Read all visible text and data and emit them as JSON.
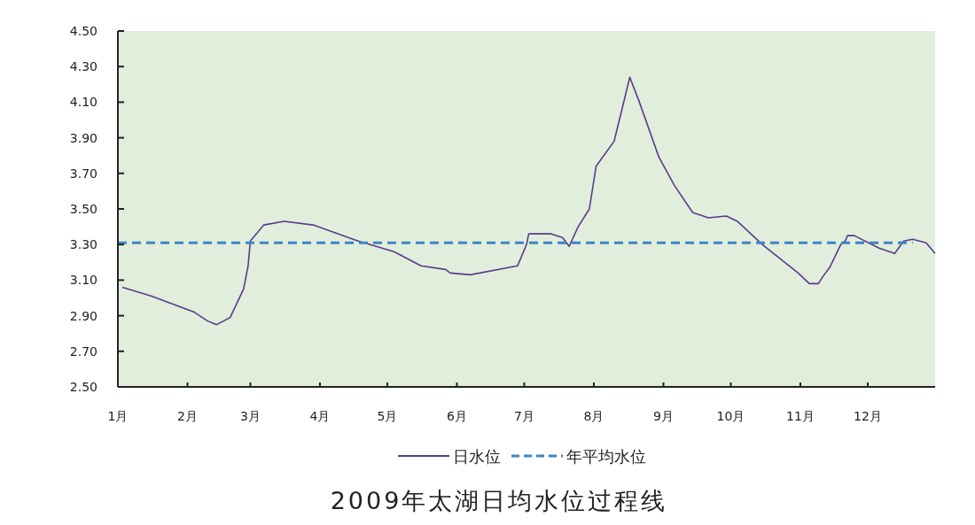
{
  "chart_data": {
    "type": "line",
    "title": "2009年太湖日均水位过程线",
    "xlim": [
      "--01-01",
      "--12-31"
    ],
    "xticks": [
      {
        "value": "--01-01",
        "label": "1月"
      },
      {
        "value": "--02-01",
        "label": "2月"
      },
      {
        "value": "--03-01",
        "label": "3月"
      },
      {
        "value": "--04-01",
        "label": "4月"
      },
      {
        "value": "--05-01",
        "label": "5月"
      },
      {
        "value": "--06-01",
        "label": "6月"
      },
      {
        "value": "--07-01",
        "label": "7月"
      },
      {
        "value": "--08-01",
        "label": "8月"
      },
      {
        "value": "--09-01",
        "label": "9月"
      },
      {
        "value": "--10-01",
        "label": "10月"
      },
      {
        "value": "--11-01",
        "label": "11月"
      },
      {
        "value": "--12-01",
        "label": "12月"
      }
    ],
    "ylim": [
      2.5,
      4.5
    ],
    "yticks": [
      {
        "value": 2.5,
        "label": "2.50"
      },
      {
        "value": 2.7,
        "label": "2.70"
      },
      {
        "value": 2.9,
        "label": "2.90"
      },
      {
        "value": 3.1,
        "label": "3.10"
      },
      {
        "value": 3.3,
        "label": "3.30"
      },
      {
        "value": 3.5,
        "label": "3.50"
      },
      {
        "value": 3.7,
        "label": "3.70"
      },
      {
        "value": 3.9,
        "label": "3.90"
      },
      {
        "value": 4.1,
        "label": "4.10"
      },
      {
        "value": 4.3,
        "label": "4.30"
      },
      {
        "value": 4.5,
        "label": "4.50"
      }
    ],
    "legend": "bottom",
    "grid": false,
    "series": [
      {
        "name": "日水位",
        "color": "#5b3a8c",
        "line_style": "solid",
        "x": [
          "--01-03",
          "--01-16",
          "--02-04",
          "--02-10",
          "--02-14",
          "--02-20",
          "--02-26",
          "--02-28",
          "--03-01",
          "--03-07",
          "--03-16",
          "--03-29",
          "--04-18",
          "--05-04",
          "--05-16",
          "--05-27",
          "--05-29",
          "--06-07",
          "--06-28",
          "--07-02",
          "--07-03",
          "--07-13",
          "--07-18",
          "--07-21",
          "--07-25",
          "--07-30",
          "--07-31",
          "--08-02",
          "--08-10",
          "--08-11",
          "--08-17",
          "--08-21",
          "--08-30",
          "--09-06",
          "--09-14",
          "--09-21",
          "--09-29",
          "--10-04",
          "--10-15",
          "--10-31",
          "--11-05",
          "--11-09",
          "--11-11",
          "--11-14",
          "--11-19",
          "--11-21",
          "--11-22",
          "--11-25",
          "--12-06",
          "--12-13",
          "--12-17",
          "--12-21",
          "--12-27",
          "--12-31"
        ],
        "values": [
          3.06,
          3.01,
          2.92,
          2.87,
          2.85,
          2.89,
          3.05,
          3.18,
          3.32,
          3.41,
          3.43,
          3.41,
          3.32,
          3.26,
          3.18,
          3.16,
          3.14,
          3.13,
          3.18,
          3.3,
          3.36,
          3.36,
          3.34,
          3.29,
          3.4,
          3.5,
          3.58,
          3.74,
          3.88,
          3.93,
          4.24,
          4.11,
          3.79,
          3.63,
          3.48,
          3.45,
          3.46,
          3.43,
          3.3,
          3.14,
          3.08,
          3.08,
          3.12,
          3.17,
          3.3,
          3.32,
          3.35,
          3.35,
          3.28,
          3.25,
          3.32,
          3.33,
          3.31,
          3.25
        ]
      },
      {
        "name": "年平均水位",
        "color": "#3d85c6",
        "line_style": "dashed",
        "x": [
          "--01-01",
          "--12-21"
        ],
        "values": [
          3.31,
          3.31
        ]
      }
    ]
  }
}
